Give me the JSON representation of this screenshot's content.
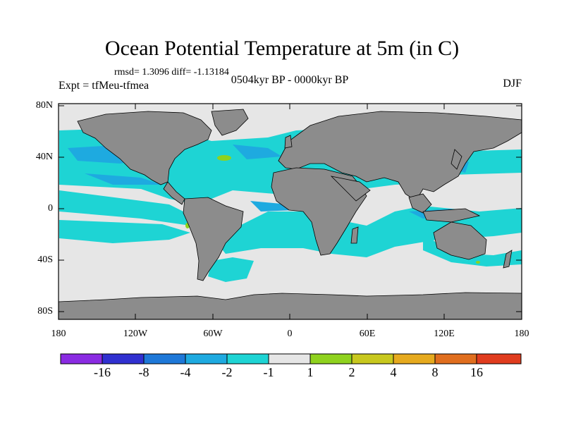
{
  "title": "Ocean Potential Temperature at 5m (in C)",
  "stats": "rmsd= 1.3096 diff= -1.13184",
  "experiment": "Expt = tfMeu-tfmea",
  "period": "0504kyr BP - 0000kyr BP",
  "season": "DJF",
  "axes": {
    "y_ticks": [
      "80N",
      "40N",
      "0",
      "40S",
      "80S"
    ],
    "x_ticks": [
      "180",
      "120W",
      "60W",
      "0",
      "60E",
      "120E",
      "180"
    ]
  },
  "colorbar": {
    "labels": [
      "-16",
      "-8",
      "-4",
      "-2",
      "-1",
      "1",
      "2",
      "4",
      "8",
      "16"
    ],
    "colors": [
      "#8a2be2",
      "#3030d0",
      "#1e78d8",
      "#1eaae0",
      "#1ed4d4",
      "#e6e6e6",
      "#8fd21e",
      "#c8c81e",
      "#e6aa1e",
      "#e06e1e",
      "#e03c1e"
    ]
  },
  "palette": {
    "land": "#8c8c8c",
    "ocean_neutral": "#e6e6e6",
    "cool_1": "#1ed4d4",
    "cool_2": "#1eaae0",
    "warm_1": "#8fd21e"
  }
}
